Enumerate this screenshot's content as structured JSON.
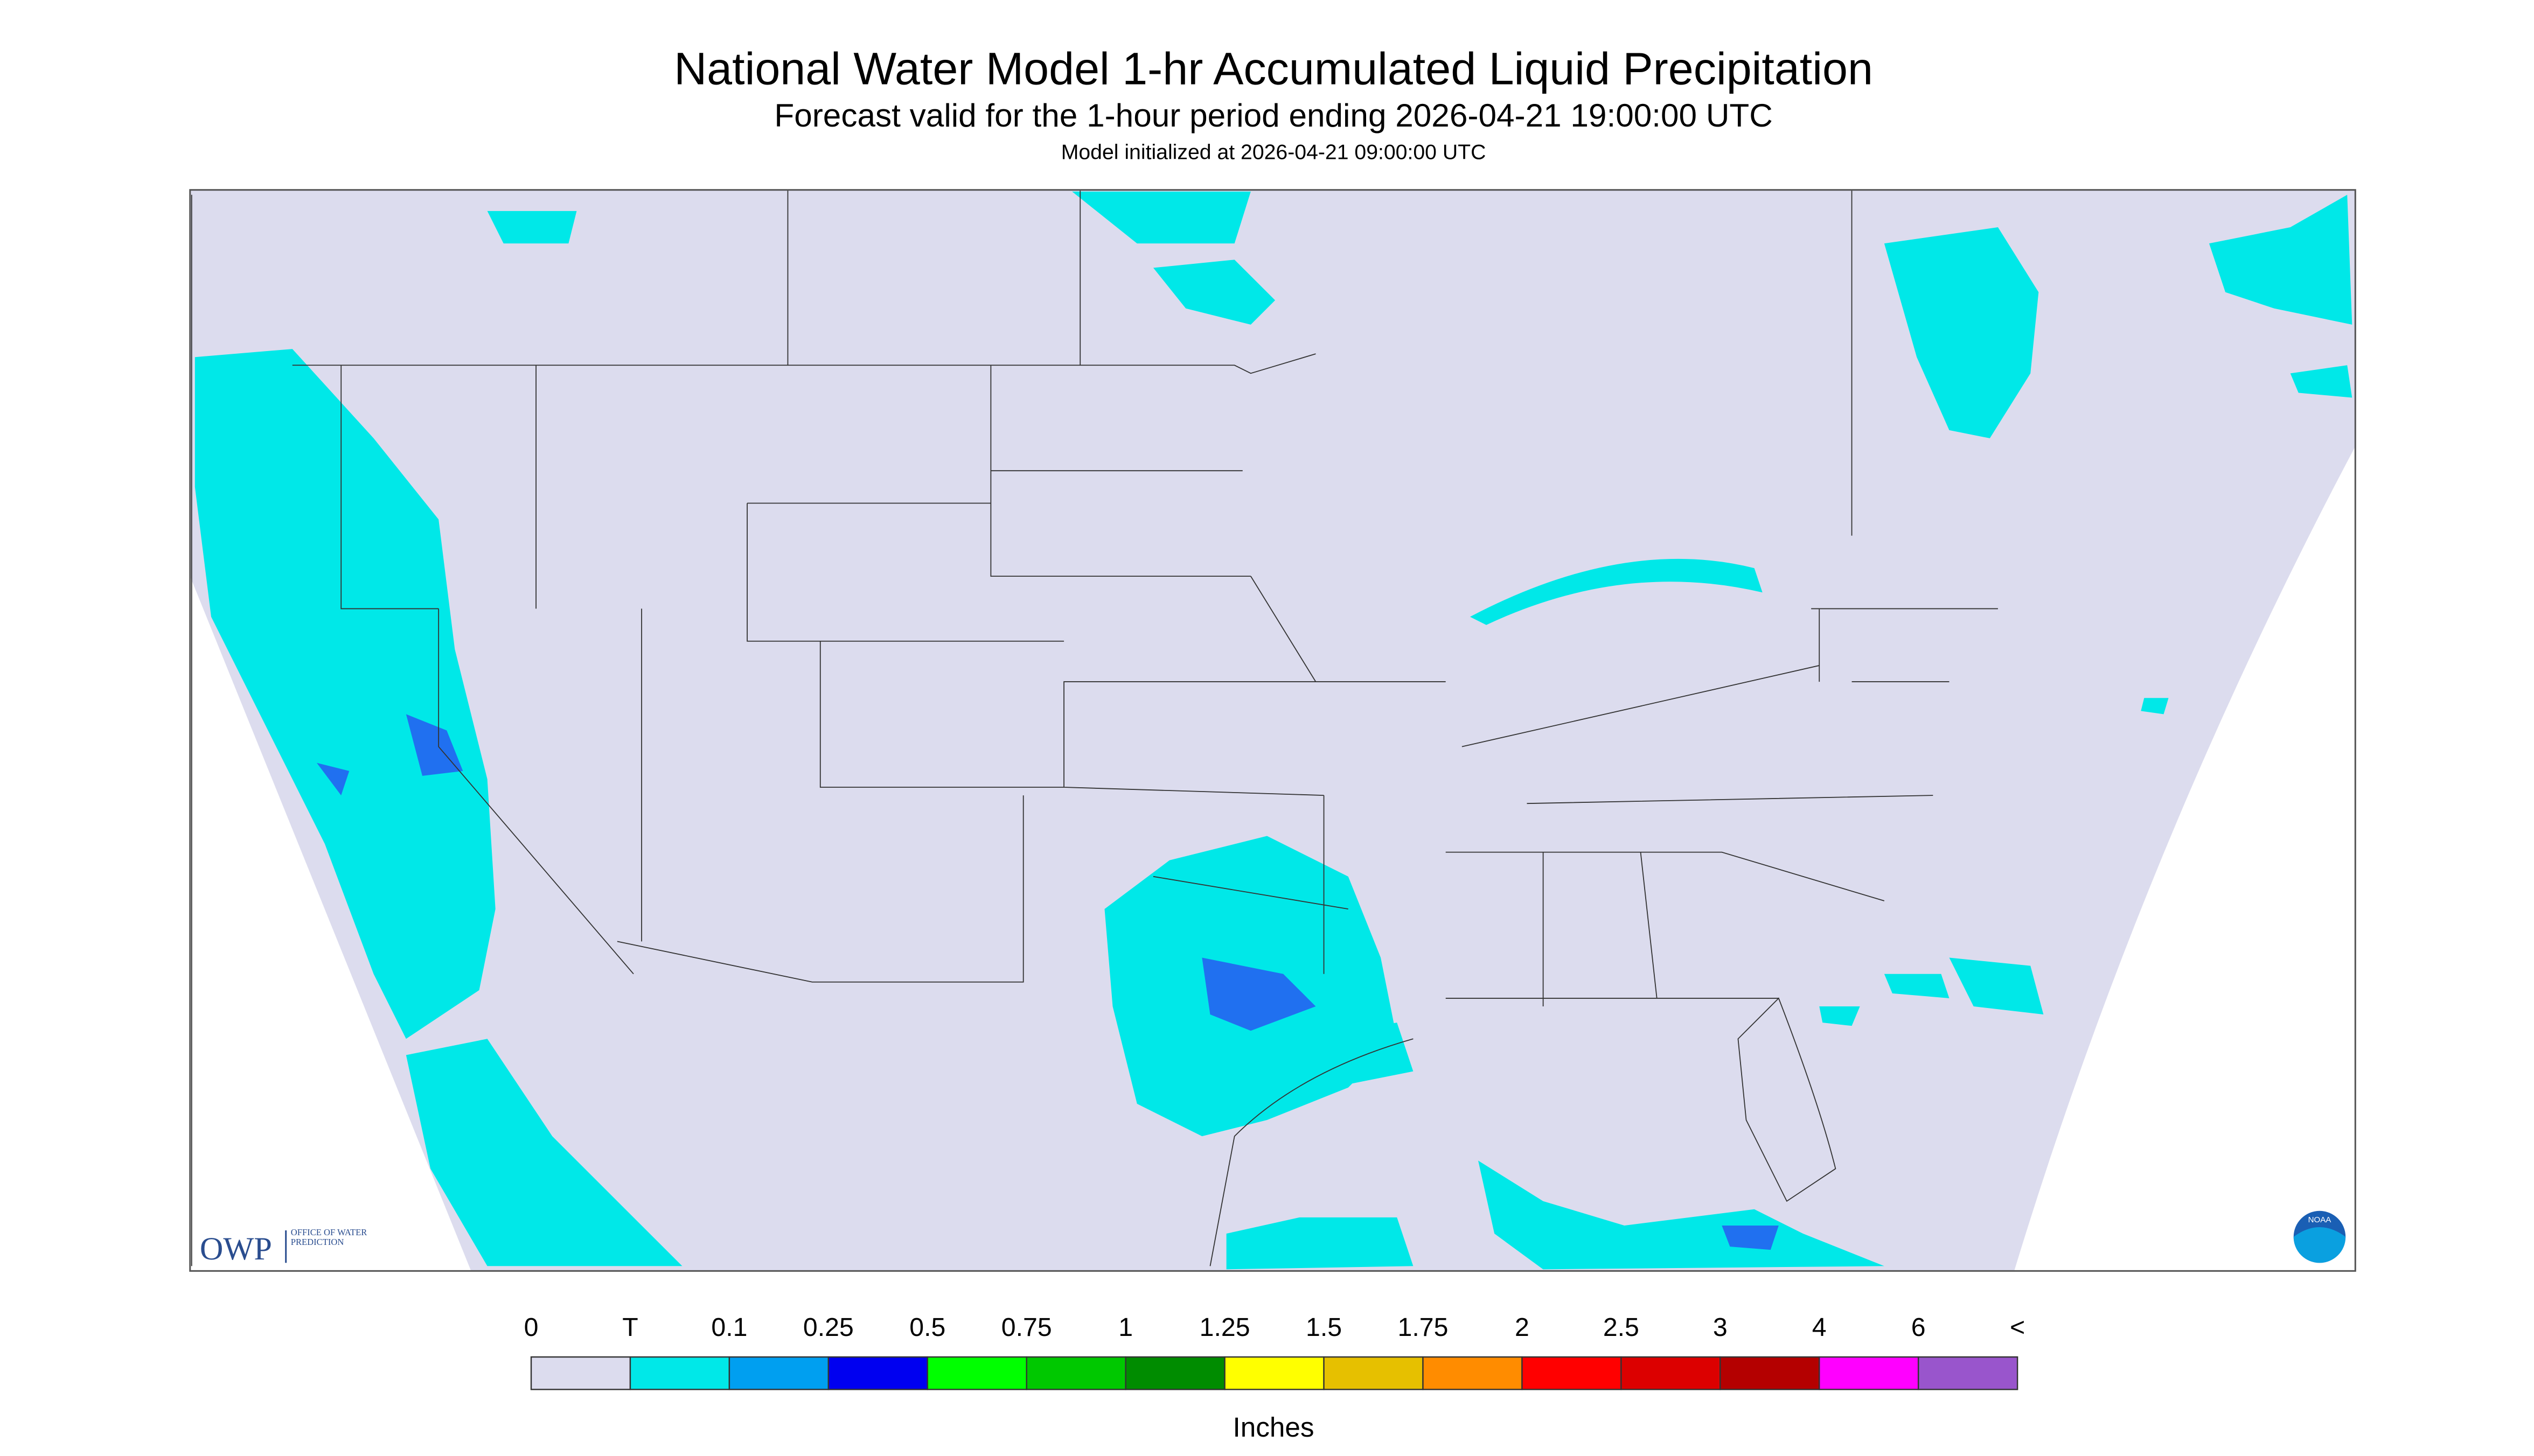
{
  "header": {
    "title": "National Water Model 1-hr Accumulated Liquid Precipitation",
    "subtitle": "Forecast valid for the 1-hour period ending 2026-04-21 19:00:00 UTC",
    "init": "Model initialized at 2026-04-21 09:00:00 UTC"
  },
  "legend": {
    "labels": [
      "0",
      "T",
      "0.1",
      "0.25",
      "0.5",
      "0.75",
      "1",
      "1.25",
      "1.5",
      "1.75",
      "2",
      "2.5",
      "3",
      "4",
      "6",
      "<"
    ],
    "colors": [
      "#dcdcee",
      "#00e8e8",
      "#009ff0",
      "#0000f0",
      "#00ff00",
      "#00c800",
      "#008c00",
      "#ffff00",
      "#e6c000",
      "#ff8c00",
      "#ff0000",
      "#dc0000",
      "#b40000",
      "#ff00ff",
      "#9955cc"
    ],
    "unit": "Inches"
  },
  "logos": {
    "owp": "OWP",
    "owp_text": "OFFICE OF WATER PREDICTION",
    "noaa": "NOAA"
  }
}
